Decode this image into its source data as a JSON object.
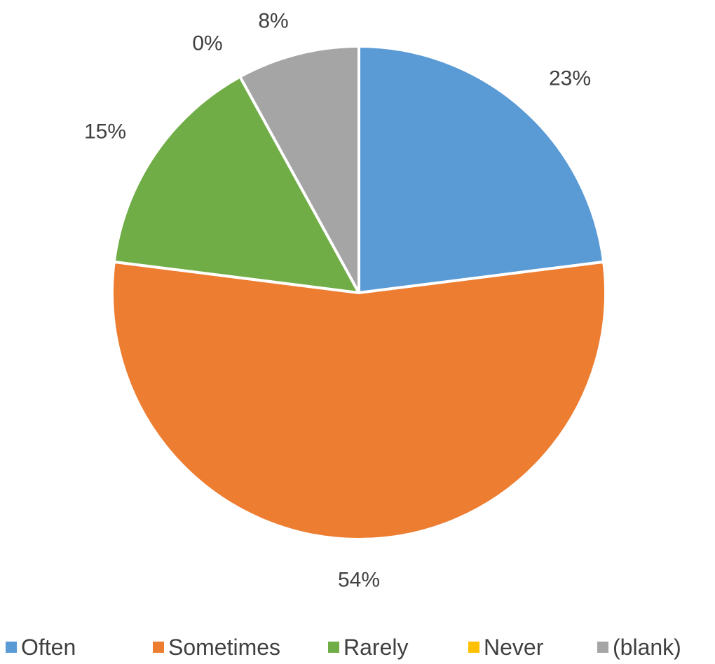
{
  "chart_data": {
    "type": "pie",
    "title": "",
    "legend_position": "bottom",
    "slices": [
      {
        "label": "Often",
        "value": 23,
        "display": "23%",
        "color": "#5B9BD5"
      },
      {
        "label": "Sometimes",
        "value": 54,
        "display": "54%",
        "color": "#ED7D31"
      },
      {
        "label": "Rarely",
        "value": 15,
        "display": "15%",
        "color": "#70AD47"
      },
      {
        "label": "Never",
        "value": 0,
        "display": "0%",
        "color": "#FFC000"
      },
      {
        "label": "(blank)",
        "value": 8,
        "display": "8%",
        "color": "#A5A5A5"
      }
    ]
  }
}
